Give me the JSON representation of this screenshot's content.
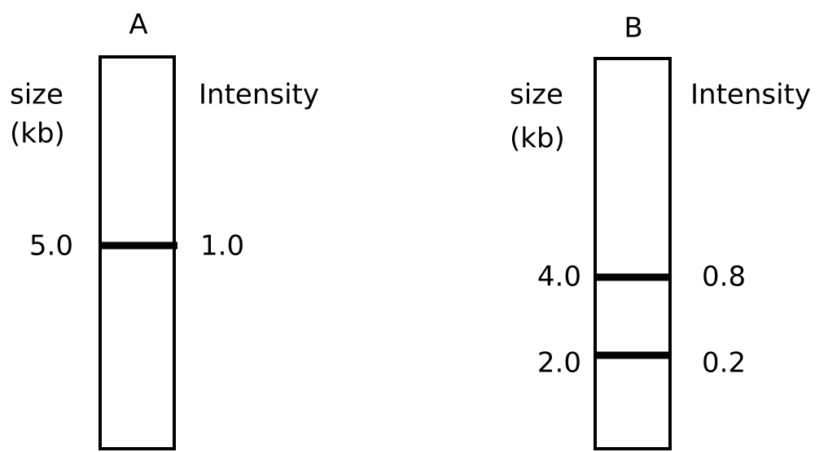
{
  "lanes": [
    {
      "title": "A",
      "size_header": "size",
      "size_unit": "(kb)",
      "intensity_header": "Intensity",
      "bands": [
        {
          "size": "5.0",
          "intensity": "1.0"
        }
      ]
    },
    {
      "title": "B",
      "size_header": "size",
      "size_unit": "(kb)",
      "intensity_header": "Intensity",
      "bands": [
        {
          "size": "4.0",
          "intensity": "0.8"
        },
        {
          "size": "2.0",
          "intensity": "0.2"
        }
      ]
    }
  ]
}
